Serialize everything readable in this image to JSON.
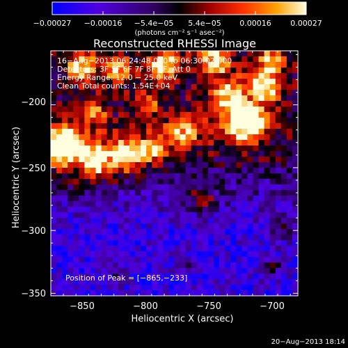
{
  "chart_data": {
    "type": "heatmap",
    "title": "Reconstructed RHESSI Image",
    "xlabel": "Heliocentric X (arcsec)",
    "ylabel": "Heliocentric Y (arcsec)",
    "xlim": [
      -875,
      -679
    ],
    "ylim": [
      -352,
      -157
    ],
    "x_ticks": [
      -850,
      -800,
      -750,
      -700
    ],
    "y_ticks": [
      -200,
      -250,
      -300,
      -350
    ],
    "x_tick_labels": [
      "−850",
      "−800",
      "−750",
      "−700"
    ],
    "y_tick_labels": [
      "−200",
      "−250",
      "−300",
      "−350"
    ],
    "colorbar": {
      "range": [
        -0.00027,
        0.00027
      ],
      "tick_labels": [
        "−0.00027",
        "−0.00016",
        "−5.4e−05",
        "5.4e−05",
        "0.00016",
        "0.00027"
      ],
      "unit_label": "(photons cm⁻² s⁻¹ asec⁻²)",
      "colors": [
        "#0000ff",
        "#6000d0",
        "#000000",
        "#b00000",
        "#ff4000",
        "#ffb000",
        "#ffffd0"
      ]
    },
    "annotations": {
      "time": "16−Aug−2013 06:24:48.000 to 06:30:02.000",
      "detectors": "Detectors: 3F 5F 6F 7F 8F 9F, Att 0",
      "energy": "Energy Range: 12.0 − 25.0 keV",
      "method": "Clean    Total counts: 1.54E+04",
      "peak": "Position of Peak = [−865,−233]"
    },
    "peak_position": [
      -865,
      -233
    ]
  },
  "footer": {
    "timestamp": "20−Aug−2013 18:14"
  }
}
